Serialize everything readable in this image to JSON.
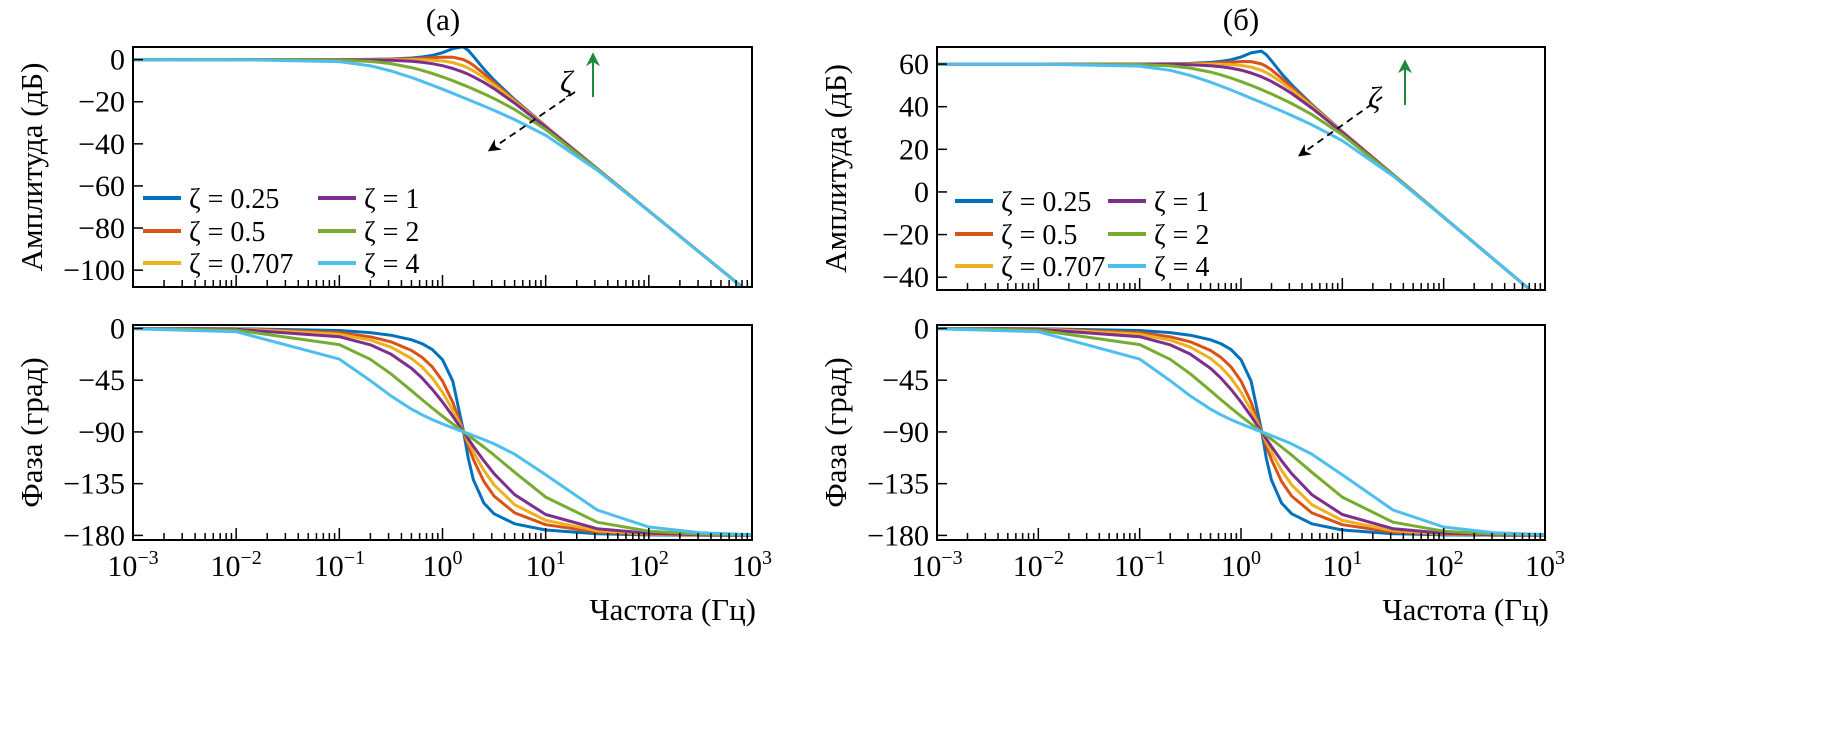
{
  "chart_data": [
    {
      "type": "line",
      "title": "(a)",
      "xlabel": "Частота (Гц)",
      "xscale": "log",
      "xlim": [
        0.001,
        1000
      ],
      "xticks": [
        0.001,
        0.01,
        0.1,
        1,
        10,
        100,
        1000
      ],
      "xtick_labels": [
        {
          "base": "10",
          "exp": "−3"
        },
        {
          "base": "10",
          "exp": "−2"
        },
        {
          "base": "10",
          "exp": "−1"
        },
        {
          "base": "10",
          "exp": "0"
        },
        {
          "base": "10",
          "exp": "1"
        },
        {
          "base": "10",
          "exp": "2"
        },
        {
          "base": "10",
          "exp": "3"
        }
      ],
      "x": [
        0.001,
        0.01,
        0.1,
        0.1995,
        0.3162,
        0.5012,
        0.631,
        0.7943,
        1,
        1.259,
        1.585,
        1.778,
        1.995,
        2.512,
        3.162,
        5.012,
        10,
        31.62,
        100,
        316.2,
        1000
      ],
      "legend_placement": "lower-left",
      "annotation": {
        "label": "ζ"
      },
      "magnitude": {
        "ylabel": "Амплитуда (дБ)",
        "ylim": [
          -108,
          6
        ],
        "yticks": [
          0,
          -20,
          -40,
          -60,
          -80,
          -100
        ],
        "ytick_labels": [
          "0",
          "−20",
          "−40",
          "−60",
          "−80",
          "−100"
        ],
        "series": [
          {
            "name": "ζ = 0.25",
            "values": [
              0,
              0,
              0.03,
              0.12,
              0.3,
              0.77,
              1.24,
              2.01,
              3.29,
              5.23,
              6.1,
              4.39,
              1.57,
              -4.41,
              -9.74,
              -19.03,
              -31.64,
              -51.81,
              -71.83,
              -91.83,
              -111.83
            ]
          },
          {
            "name": "ζ = 0.5",
            "values": [
              0,
              0,
              0.02,
              0.07,
              0.17,
              0.4,
              0.61,
              0.89,
              1.18,
              1.17,
              0.08,
              -1.11,
              -2.7,
              -6.64,
              -10.91,
              -19.42,
              -31.73,
              -51.82,
              -71.83,
              -91.83,
              -111.83
            ]
          },
          {
            "name": "ζ = 0.707",
            "values": [
              0,
              0,
              0,
              0,
              -0.01,
              -0.04,
              -0.1,
              -0.26,
              -0.62,
              -1.41,
              -2.93,
              -4.02,
              -5.34,
              -8.5,
              -12.11,
              -19.88,
              -31.84,
              -51.83,
              -71.83,
              -91.83,
              -111.83
            ]
          },
          {
            "name": "ζ = 1",
            "values": [
              0,
              0,
              -0.03,
              -0.13,
              -0.33,
              -0.81,
              -1.26,
              -1.91,
              -2.86,
              -4.19,
              -5.94,
              -6.99,
              -8.15,
              -10.79,
              -13.81,
              -20.68,
              -32.05,
              -51.85,
              -71.83,
              -91.83,
              -111.83
            ]
          },
          {
            "name": "ζ = 2",
            "values": [
              0,
              0,
              -0.23,
              -0.86,
              -1.9,
              -3.77,
              -5.05,
              -6.54,
              -8.21,
              -10.02,
              -11.96,
              -12.97,
              -14.01,
              -16.19,
              -18.51,
              -23.7,
              -33.17,
              -51.99,
              -71.85,
              -91.83,
              -111.83
            ]
          },
          {
            "name": "ζ = 4",
            "values": [
              0,
              -0.01,
              -0.94,
              -2.93,
              -5.34,
              -8.51,
              -10.28,
              -12.13,
              -14.04,
              -16.0,
              -17.98,
              -18.98,
              -19.99,
              -22.04,
              -24.12,
              -28.48,
              -35.96,
              -52.47,
              -71.9,
              -91.84,
              -111.83
            ]
          }
        ]
      },
      "phase": {
        "ylabel": "Фаза (град)",
        "ylim": [
          -184,
          3
        ],
        "yticks": [
          0,
          -45,
          -90,
          -135,
          -180
        ],
        "ytick_labels": [
          "0",
          "−45",
          "−90",
          "−135",
          "−180"
        ],
        "series": [
          {
            "name": "ζ = 0.25",
            "values": [
              -0.02,
              -0.18,
              -1.8,
              -3.63,
              -5.87,
              -9.85,
              -13.14,
              -18.23,
              -27.15,
              -45.9,
              -87.84,
              -112.95,
              -131.69,
              -151.81,
              -161.22,
              -169.92,
              -175.31,
              -178.55,
              -179.54,
              -179.85,
              -179.95
            ]
          },
          {
            "name": "ζ = 0.5",
            "values": [
              -0.04,
              -0.36,
              -3.59,
              -7.22,
              -11.63,
              -19.15,
              -25.03,
              -33.37,
              -45.72,
              -64.2,
              -88.92,
              -101.96,
              -114.0,
              -133.02,
              -145.78,
              -160.43,
              -170.68,
              -177.1,
              -179.08,
              -179.71,
              -179.91
            ]
          },
          {
            "name": "ζ = 0.707",
            "values": [
              -0.05,
              -0.51,
              -5.07,
              -10.15,
              -16.21,
              -26.15,
              -33.43,
              -42.97,
              -55.41,
              -71.1,
              -89.24,
              -98.52,
              -107.48,
              -123.42,
              -136.11,
              -153.31,
              -166.93,
              -175.9,
              -178.7,
              -179.59,
              -179.87
            ]
          },
          {
            "name": "ζ = 1",
            "values": [
              -0.07,
              -0.72,
              -7.15,
              -14.22,
              -22.35,
              -34.78,
              -43.04,
              -52.8,
              -64.0,
              -76.4,
              -89.46,
              -96.04,
              -102.55,
              -115.01,
              -126.32,
              -144.59,
              -161.82,
              -174.21,
              -178.17,
              -179.42,
              -179.82
            ]
          },
          {
            "name": "ζ = 2",
            "values": [
              -0.14,
              -1.43,
              -14.09,
              -26.87,
              -39.42,
              -54.25,
              -61.83,
              -69.2,
              -76.3,
              -83.1,
              -89.73,
              -93.03,
              -96.35,
              -103.13,
              -110.18,
              -125.11,
              -146.7,
              -168.53,
              -176.34,
              -178.84,
              -179.63
            ]
          },
          {
            "name": "ζ = 4",
            "values": [
              -0.29,
              -2.86,
              -26.65,
              -45.38,
              -58.71,
              -70.2,
              -75.0,
              -79.25,
              -83.05,
              -86.5,
              -89.86,
              -91.52,
              -93.19,
              -96.65,
              -100.42,
              -109.37,
              -127.28,
              -157.91,
              -172.7,
              -177.68,
              -179.27
            ]
          }
        ]
      }
    },
    {
      "type": "line",
      "title": "(б)",
      "xlabel": "Частота (Гц)",
      "xscale": "log",
      "xlim": [
        0.001,
        1000
      ],
      "xticks": [
        0.001,
        0.01,
        0.1,
        1,
        10,
        100,
        1000
      ],
      "xtick_labels": [
        {
          "base": "10",
          "exp": "−3"
        },
        {
          "base": "10",
          "exp": "−2"
        },
        {
          "base": "10",
          "exp": "−1"
        },
        {
          "base": "10",
          "exp": "0"
        },
        {
          "base": "10",
          "exp": "1"
        },
        {
          "base": "10",
          "exp": "2"
        },
        {
          "base": "10",
          "exp": "3"
        }
      ],
      "x": [
        0.001,
        0.01,
        0.1,
        0.1995,
        0.3162,
        0.5012,
        0.631,
        0.7943,
        1,
        1.259,
        1.585,
        1.778,
        1.995,
        2.512,
        3.162,
        5.012,
        10,
        31.62,
        100,
        316.2,
        1000
      ],
      "legend_placement": "lower-left",
      "annotation": {
        "label": "ζ"
      },
      "magnitude": {
        "ylabel": "Амплитуда (дБ)",
        "ylim": [
          -46,
          68
        ],
        "yticks": [
          60,
          40,
          20,
          0,
          -20,
          -40
        ],
        "ytick_labels": [
          "60",
          "40",
          "20",
          "0",
          "−20",
          "−40"
        ],
        "series": [
          {
            "name": "ζ = 0.25",
            "values": [
              60,
              60,
              60.03,
              60.12,
              60.3,
              60.77,
              61.24,
              62.01,
              63.29,
              65.23,
              66.1,
              64.39,
              61.57,
              55.59,
              50.26,
              40.97,
              28.36,
              8.19,
              -11.83,
              -31.83,
              -51.83
            ]
          },
          {
            "name": "ζ = 0.5",
            "values": [
              60,
              60,
              60.02,
              60.07,
              60.17,
              60.4,
              60.61,
              60.89,
              61.18,
              61.17,
              60.08,
              58.89,
              57.3,
              53.36,
              49.09,
              40.58,
              28.27,
              8.18,
              -11.83,
              -31.83,
              -51.83
            ]
          },
          {
            "name": "ζ = 0.707",
            "values": [
              60,
              60,
              60,
              60,
              59.99,
              59.96,
              59.9,
              59.74,
              59.38,
              58.59,
              57.07,
              55.98,
              54.66,
              51.5,
              47.89,
              40.12,
              28.16,
              8.17,
              -11.83,
              -31.83,
              -51.83
            ]
          },
          {
            "name": "ζ = 1",
            "values": [
              60,
              60,
              59.97,
              59.87,
              59.67,
              59.19,
              58.74,
              58.09,
              57.14,
              55.81,
              54.06,
              53.01,
              51.85,
              49.21,
              46.19,
              39.32,
              27.95,
              8.15,
              -11.83,
              -31.83,
              -51.83
            ]
          },
          {
            "name": "ζ = 2",
            "values": [
              60,
              60,
              59.77,
              59.14,
              58.1,
              56.23,
              54.95,
              53.46,
              51.79,
              49.98,
              48.04,
              47.03,
              45.99,
              43.81,
              41.49,
              36.3,
              26.83,
              8.01,
              -11.85,
              -31.83,
              -51.83
            ]
          },
          {
            "name": "ζ = 4",
            "values": [
              60,
              59.99,
              59.06,
              57.07,
              54.66,
              51.49,
              49.72,
              47.87,
              45.96,
              44.0,
              42.02,
              41.02,
              40.01,
              37.96,
              35.88,
              31.52,
              24.04,
              7.53,
              -11.9,
              -31.84,
              -51.83
            ]
          }
        ]
      },
      "phase": {
        "ylabel": "Фаза (град)",
        "ylim": [
          -184,
          3
        ],
        "yticks": [
          0,
          -45,
          -90,
          -135,
          -180
        ],
        "ytick_labels": [
          "0",
          "−45",
          "−90",
          "−135",
          "−180"
        ],
        "series": [
          {
            "name": "ζ = 0.25",
            "values": [
              -0.02,
              -0.18,
              -1.8,
              -3.63,
              -5.87,
              -9.85,
              -13.14,
              -18.23,
              -27.15,
              -45.9,
              -87.84,
              -112.95,
              -131.69,
              -151.81,
              -161.22,
              -169.92,
              -175.31,
              -178.55,
              -179.54,
              -179.85,
              -179.95
            ]
          },
          {
            "name": "ζ = 0.5",
            "values": [
              -0.04,
              -0.36,
              -3.59,
              -7.22,
              -11.63,
              -19.15,
              -25.03,
              -33.37,
              -45.72,
              -64.2,
              -88.92,
              -101.96,
              -114.0,
              -133.02,
              -145.78,
              -160.43,
              -170.68,
              -177.1,
              -179.08,
              -179.71,
              -179.91
            ]
          },
          {
            "name": "ζ = 0.707",
            "values": [
              -0.05,
              -0.51,
              -5.07,
              -10.15,
              -16.21,
              -26.15,
              -33.43,
              -42.97,
              -55.41,
              -71.1,
              -89.24,
              -98.52,
              -107.48,
              -123.42,
              -136.11,
              -153.31,
              -166.93,
              -175.9,
              -178.7,
              -179.59,
              -179.87
            ]
          },
          {
            "name": "ζ = 1",
            "values": [
              -0.07,
              -0.72,
              -7.15,
              -14.22,
              -22.35,
              -34.78,
              -43.04,
              -52.8,
              -64.0,
              -76.4,
              -89.46,
              -96.04,
              -102.55,
              -115.01,
              -126.32,
              -144.59,
              -161.82,
              -174.21,
              -178.17,
              -179.42,
              -179.82
            ]
          },
          {
            "name": "ζ = 2",
            "values": [
              -0.14,
              -1.43,
              -14.09,
              -26.87,
              -39.42,
              -54.25,
              -61.83,
              -69.2,
              -76.3,
              -83.1,
              -89.73,
              -93.03,
              -96.35,
              -103.13,
              -110.18,
              -125.11,
              -146.7,
              -168.53,
              -176.34,
              -178.84,
              -179.63
            ]
          },
          {
            "name": "ζ = 4",
            "values": [
              -0.29,
              -2.86,
              -26.65,
              -45.38,
              -58.71,
              -70.2,
              -75.0,
              -79.25,
              -83.05,
              -86.5,
              -89.86,
              -91.52,
              -93.19,
              -96.65,
              -100.42,
              -109.37,
              -127.28,
              -157.91,
              -172.7,
              -177.68,
              -179.27
            ]
          }
        ]
      }
    }
  ],
  "colors": {
    "series": [
      "#0072BD",
      "#D95319",
      "#EDB120",
      "#7E2F8E",
      "#77AC30",
      "#4DBEEE"
    ],
    "axes": "#000000",
    "annotation_arrow": "#000000",
    "increase_arrow": "#1E8A3C"
  }
}
